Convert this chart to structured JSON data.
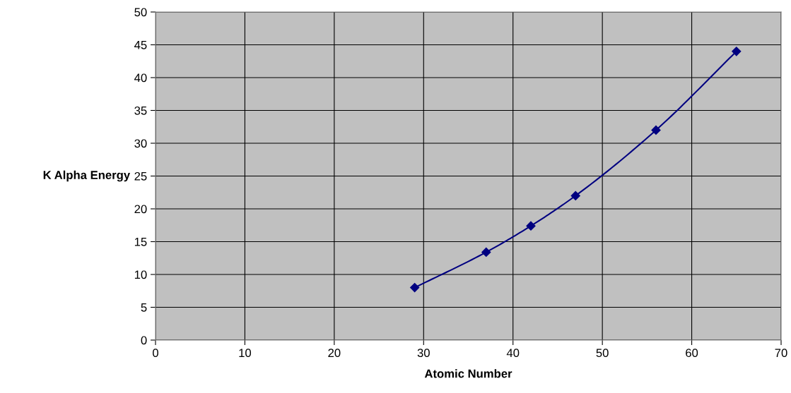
{
  "chart_data": {
    "type": "line",
    "xlabel": "Atomic Number",
    "ylabel": "K Alpha Energy",
    "x": [
      29,
      37,
      42,
      47,
      56,
      65
    ],
    "series": [
      {
        "color": "#000080",
        "values": [
          8.0,
          13.4,
          17.4,
          22.0,
          32.0,
          44.0
        ]
      }
    ],
    "xlim": [
      0,
      70
    ],
    "xticks": [
      0,
      10,
      20,
      30,
      40,
      50,
      60,
      70
    ],
    "ylim": [
      0,
      50
    ],
    "yticks": [
      0,
      5,
      10,
      15,
      20,
      25,
      30,
      35,
      40,
      45,
      50
    ],
    "grid": true,
    "marker": "diamond",
    "line_style": "solid"
  }
}
